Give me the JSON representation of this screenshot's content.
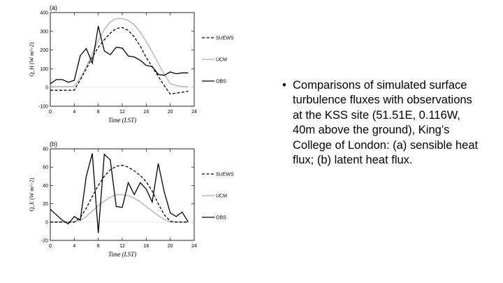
{
  "slide": {
    "bullet_symbol": "•",
    "bullet_text": "Comparisons  of simulated surface turbulence fluxes with observations at the KSS site (51.51E, 0.116W, 40m above the ground), King’s College of London: (a) sensible heat flux; (b) latent heat flux."
  },
  "chart_data": [
    {
      "type": "line",
      "panel_label": "(a)",
      "xlabel": "Time (LST)",
      "ylabel": "Q_H (W m^-2)",
      "xlim": [
        0,
        24
      ],
      "ylim": [
        -100,
        400
      ],
      "xticks": [
        0,
        4,
        8,
        12,
        16,
        20,
        24
      ],
      "yticks": [
        -100,
        0,
        100,
        200,
        300,
        400
      ],
      "grid": false,
      "legend_position": "right",
      "x": [
        0,
        1,
        2,
        3,
        4,
        5,
        6,
        7,
        8,
        9,
        10,
        11,
        12,
        13,
        14,
        15,
        16,
        17,
        18,
        19,
        20,
        21,
        22,
        23
      ],
      "series": [
        {
          "name": "SUEWS",
          "style": "dashed",
          "color": "#000000",
          "values": [
            -15,
            -15,
            -15,
            -15,
            -14,
            40,
            100,
            160,
            215,
            255,
            290,
            315,
            320,
            305,
            270,
            220,
            160,
            110,
            60,
            10,
            -35,
            -30,
            -25,
            -20
          ]
        },
        {
          "name": "UCM",
          "style": "solid",
          "color": "#bbbbbb",
          "values": [
            5,
            5,
            5,
            5,
            6,
            50,
            110,
            180,
            250,
            310,
            350,
            368,
            368,
            358,
            335,
            295,
            245,
            190,
            130,
            70,
            20,
            10,
            5,
            5
          ]
        },
        {
          "name": "OBS",
          "style": "solid",
          "color": "#000000",
          "values": [
            20,
            42,
            42,
            28,
            38,
            170,
            208,
            130,
            328,
            195,
            175,
            215,
            210,
            168,
            163,
            145,
            118,
            112,
            70,
            65,
            83,
            73,
            78,
            78
          ]
        }
      ]
    },
    {
      "type": "line",
      "panel_label": "(b)",
      "xlabel": "Time (LST)",
      "ylabel": "Q_E (W m^-2)",
      "xlim": [
        0,
        24
      ],
      "ylim": [
        -20,
        80
      ],
      "xticks": [
        0,
        4,
        8,
        12,
        16,
        20,
        24
      ],
      "yticks": [
        -20,
        0,
        20,
        40,
        60,
        80
      ],
      "grid": false,
      "legend_position": "right",
      "x": [
        0,
        1,
        2,
        3,
        4,
        5,
        6,
        7,
        8,
        9,
        10,
        11,
        12,
        13,
        14,
        15,
        16,
        17,
        18,
        19,
        20,
        21,
        22,
        23
      ],
      "series": [
        {
          "name": "SUEWS",
          "style": "dashed",
          "color": "#000000",
          "values": [
            0,
            0,
            0,
            0,
            0,
            5,
            15,
            28,
            40,
            50,
            57,
            61,
            62,
            60,
            56,
            51,
            44,
            34,
            20,
            8,
            1,
            0,
            0,
            0
          ]
        },
        {
          "name": "UCM",
          "style": "solid",
          "color": "#bbbbbb",
          "values": [
            0,
            0,
            0,
            0,
            0,
            2,
            6,
            12,
            18,
            23,
            27,
            30,
            30,
            29,
            26,
            22,
            17,
            12,
            7,
            3,
            0,
            0,
            0,
            0
          ]
        },
        {
          "name": "OBS",
          "style": "solid",
          "color": "#000000",
          "values": [
            14,
            8,
            2,
            -2,
            6,
            2,
            50,
            75,
            -12,
            74,
            68,
            17,
            16,
            43,
            30,
            43,
            36,
            22,
            64,
            33,
            10,
            6,
            11,
            0
          ]
        }
      ]
    }
  ]
}
